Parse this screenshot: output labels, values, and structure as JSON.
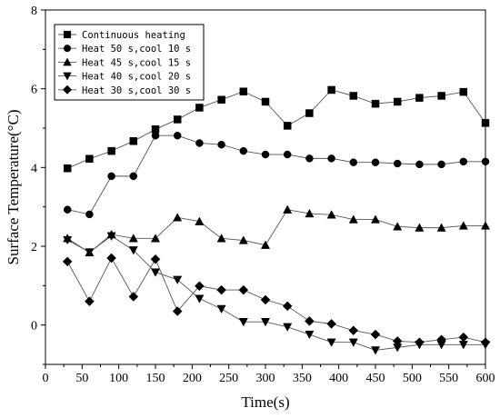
{
  "chart_data": {
    "type": "line",
    "xlabel": "Time(s)",
    "ylabel": "Surface Temperature(°C)",
    "xlim": [
      0,
      600
    ],
    "ylim": [
      -1,
      8
    ],
    "xticks": [
      0,
      50,
      100,
      150,
      200,
      250,
      300,
      350,
      400,
      450,
      500,
      550,
      600
    ],
    "yticks": [
      0,
      2,
      4,
      6,
      8
    ],
    "grid": false,
    "legend_position": "top-left",
    "series": [
      {
        "name": "Continuous heating",
        "marker": "square",
        "x": [
          30,
          60,
          90,
          120,
          150,
          180,
          210,
          240,
          270,
          300,
          330,
          360,
          390,
          420,
          450,
          480,
          510,
          540,
          570,
          600
        ],
        "y": [
          3.98,
          4.22,
          4.42,
          4.67,
          4.97,
          5.22,
          5.52,
          5.72,
          5.93,
          5.67,
          5.06,
          5.38,
          5.97,
          5.82,
          5.62,
          5.67,
          5.77,
          5.82,
          5.92,
          5.13
        ]
      },
      {
        "name": "Heat 50 s,cool 10 s",
        "marker": "circle",
        "x": [
          30,
          60,
          90,
          120,
          150,
          180,
          210,
          240,
          270,
          300,
          330,
          360,
          390,
          420,
          450,
          480,
          510,
          540,
          570,
          600
        ],
        "y": [
          2.93,
          2.81,
          3.78,
          3.78,
          4.81,
          4.81,
          4.62,
          4.58,
          4.42,
          4.33,
          4.33,
          4.23,
          4.23,
          4.13,
          4.13,
          4.1,
          4.08,
          4.08,
          4.15,
          4.15
        ]
      },
      {
        "name": "Heat 45 s,cool 15 s",
        "marker": "triangle-up",
        "x": [
          30,
          60,
          90,
          120,
          150,
          180,
          210,
          240,
          270,
          300,
          330,
          360,
          390,
          420,
          450,
          480,
          510,
          540,
          570,
          600
        ],
        "y": [
          2.2,
          1.84,
          2.3,
          2.2,
          2.2,
          2.73,
          2.63,
          2.2,
          2.15,
          2.03,
          2.93,
          2.83,
          2.8,
          2.68,
          2.68,
          2.5,
          2.47,
          2.47,
          2.52,
          2.52
        ]
      },
      {
        "name": "Heat 40 s,cool 20 s",
        "marker": "triangle-down",
        "x": [
          30,
          60,
          90,
          120,
          150,
          180,
          210,
          240,
          270,
          300,
          330,
          360,
          390,
          420,
          450,
          480,
          510,
          540,
          570,
          600
        ],
        "y": [
          2.16,
          1.85,
          2.26,
          1.9,
          1.34,
          1.15,
          0.67,
          0.41,
          0.08,
          0.08,
          -0.05,
          -0.24,
          -0.44,
          -0.44,
          -0.64,
          -0.57,
          -0.5,
          -0.5,
          -0.5,
          -0.5
        ]
      },
      {
        "name": "Heat 30 s,cool 30 s",
        "marker": "diamond",
        "x": [
          30,
          60,
          90,
          120,
          150,
          180,
          210,
          240,
          270,
          300,
          330,
          360,
          390,
          420,
          450,
          480,
          510,
          540,
          570,
          600
        ],
        "y": [
          1.61,
          0.6,
          1.7,
          0.72,
          1.67,
          0.35,
          0.99,
          0.89,
          0.89,
          0.64,
          0.48,
          0.1,
          0.03,
          -0.14,
          -0.24,
          -0.41,
          -0.44,
          -0.37,
          -0.31,
          -0.44
        ]
      }
    ]
  }
}
